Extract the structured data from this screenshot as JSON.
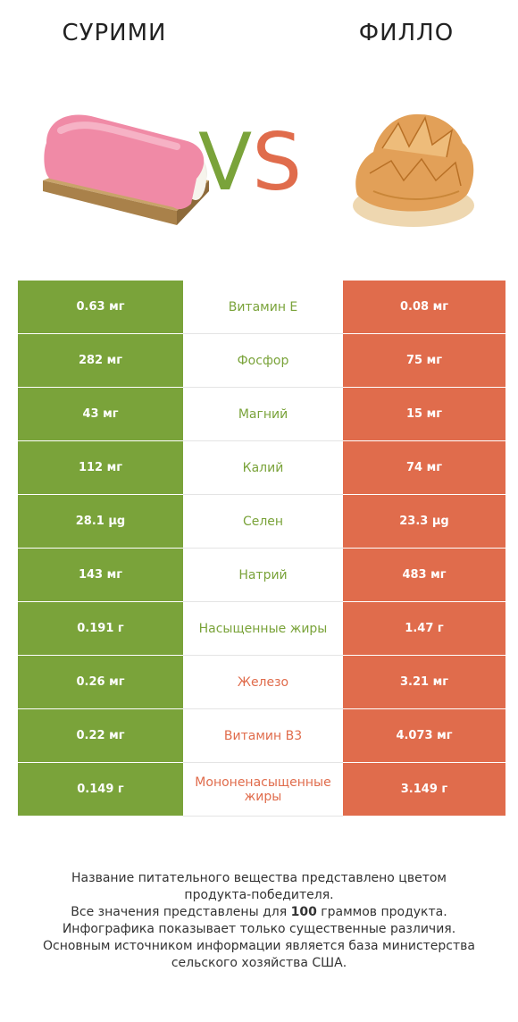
{
  "header": {
    "left_title": "СУРИМИ",
    "right_title": "ФИЛЛО",
    "vs_v": "V",
    "vs_s": "S"
  },
  "colors": {
    "left_winner": "#7aa33a",
    "right_winner": "#e06c4c"
  },
  "rows": [
    {
      "left": "0.63 мг",
      "nutrient": "Витамин E",
      "right": "0.08 мг",
      "winner": "left"
    },
    {
      "left": "282 мг",
      "nutrient": "Фосфор",
      "right": "75 мг",
      "winner": "left"
    },
    {
      "left": "43 мг",
      "nutrient": "Магний",
      "right": "15 мг",
      "winner": "left"
    },
    {
      "left": "112 мг",
      "nutrient": "Калий",
      "right": "74 мг",
      "winner": "left"
    },
    {
      "left": "28.1 µg",
      "nutrient": "Селен",
      "right": "23.3 µg",
      "winner": "left"
    },
    {
      "left": "143 мг",
      "nutrient": "Натрий",
      "right": "483 мг",
      "winner": "left"
    },
    {
      "left": "0.191 г",
      "nutrient": "Насыщенные жиры",
      "right": "1.47 г",
      "winner": "left"
    },
    {
      "left": "0.26 мг",
      "nutrient": "Железо",
      "right": "3.21 мг",
      "winner": "right"
    },
    {
      "left": "0.22 мг",
      "nutrient": "Витамин B3",
      "right": "4.073 мг",
      "winner": "right"
    },
    {
      "left": "0.149 г",
      "nutrient": "Мононенасыщенные жиры",
      "right": "3.149 г",
      "winner": "right"
    }
  ],
  "footer": {
    "line1": "Название питательного вещества представлено цветом",
    "line2": "продукта-победителя.",
    "line3_pre": "Все значения представлены для ",
    "line3_bold": "100",
    "line3_post": " граммов продукта.",
    "line4": "Инфографика показывает только существенные различия.",
    "line5": "Основным источником информации является база министерства",
    "line6": "сельского хозяйства США."
  }
}
